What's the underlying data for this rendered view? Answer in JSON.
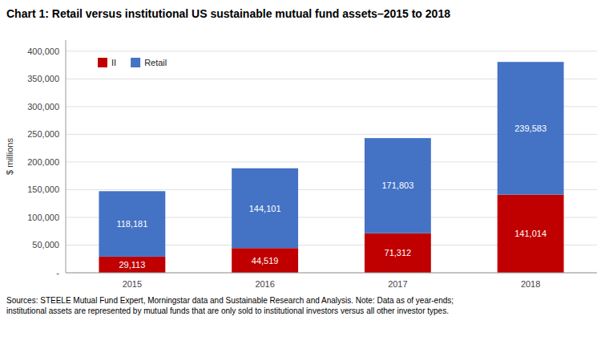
{
  "chart_data": {
    "type": "bar",
    "stacked": true,
    "title": "Chart 1:  Retail versus institutional US sustainable mutual fund assets–2015 to 2018",
    "categories": [
      "2015",
      "2016",
      "2017",
      "2018"
    ],
    "series": [
      {
        "name": "II",
        "color": "#c00000",
        "values": [
          29113,
          44519,
          71312,
          141014
        ],
        "value_labels": [
          "29,113",
          "44,519",
          "71,312",
          "141,014"
        ]
      },
      {
        "name": "Retail",
        "color": "#4472c4",
        "values": [
          118181,
          144101,
          171803,
          239583
        ],
        "value_labels": [
          "118,181",
          "144,101",
          "171,803",
          "239,583"
        ]
      }
    ],
    "ylabel": "$ millions",
    "ylim": [
      0,
      420000
    ],
    "yticks": [
      {
        "value": 0,
        "label": "-"
      },
      {
        "value": 50000,
        "label": "50,000"
      },
      {
        "value": 100000,
        "label": "100,000"
      },
      {
        "value": 150000,
        "label": "150,000"
      },
      {
        "value": 200000,
        "label": "200,000"
      },
      {
        "value": 250000,
        "label": "250,000"
      },
      {
        "value": 300000,
        "label": "300,000"
      },
      {
        "value": 350000,
        "label": "350,000"
      },
      {
        "value": 400000,
        "label": "400,000"
      }
    ],
    "grid": true,
    "legend": "upper left",
    "data_labels": true,
    "annotations": [
      "Sources:  STEELE Mutual Fund Expert, Morningstar data and Sustainable Research and Analysis.  Note:  Data as of year-ends;\ninstitutional assets are represented by mutual funds that are only sold to institutional investors versus all other investor types."
    ]
  }
}
